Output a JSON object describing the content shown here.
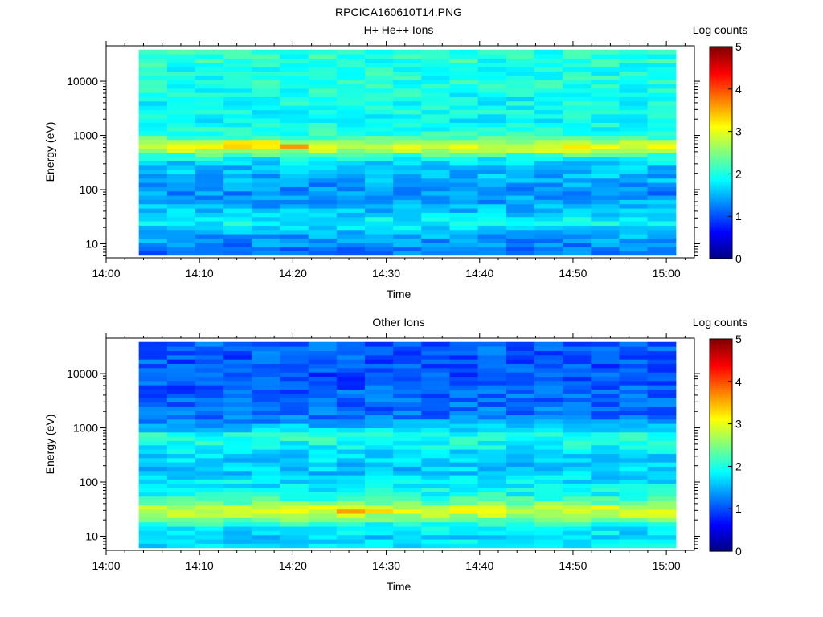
{
  "figure": {
    "title": "RPCICA160610T14.PNG"
  },
  "colormap": {
    "stops": [
      "#00007f",
      "#0000ff",
      "#007fff",
      "#00ffff",
      "#7fff7f",
      "#ffff00",
      "#ff7f00",
      "#ff0000",
      "#7f0000"
    ]
  },
  "chart_data": [
    {
      "type": "heatmap",
      "title": "H+ He++ Ions",
      "xlabel": "Time",
      "ylabel": "Energy (eV)",
      "x_ticks": [
        "14:00",
        "14:10",
        "14:20",
        "14:30",
        "14:40",
        "14:50",
        "15:00"
      ],
      "xlim_minutes": [
        0,
        63
      ],
      "data_x_range_minutes": [
        3.5,
        61
      ],
      "y_scale": "log",
      "ylim": [
        5.5,
        45000
      ],
      "y_ticks": [
        10,
        100,
        1000,
        10000
      ],
      "y_tick_labels": [
        "10",
        "100",
        "1000",
        "10000"
      ],
      "colorbar": {
        "label": "Log counts",
        "range": [
          0,
          5
        ],
        "ticks": [
          "0",
          "1",
          "2",
          "3",
          "4",
          "5"
        ]
      },
      "grid": false,
      "profile": {
        "log_energy": [
          0.8,
          1.0,
          1.2,
          1.4,
          1.6,
          1.8,
          2.0,
          2.2,
          2.4,
          2.6,
          2.7,
          2.8,
          2.9,
          3.0,
          3.2,
          3.5,
          4.0,
          4.6
        ],
        "log_counts": [
          1.2,
          1.3,
          1.5,
          1.9,
          1.6,
          1.4,
          1.3,
          1.5,
          1.6,
          1.9,
          2.6,
          3.0,
          2.6,
          2.1,
          1.9,
          1.9,
          2.0,
          2.05
        ]
      },
      "note_peak": {
        "time_minutes": [
          12,
          22
        ],
        "log_energy": 2.88,
        "boost": 0.5
      }
    },
    {
      "type": "heatmap",
      "title": "Other Ions",
      "xlabel": "Time",
      "ylabel": "Energy (eV)",
      "x_ticks": [
        "14:00",
        "14:10",
        "14:20",
        "14:30",
        "14:40",
        "14:50",
        "15:00"
      ],
      "xlim_minutes": [
        0,
        63
      ],
      "data_x_range_minutes": [
        3.5,
        61
      ],
      "y_scale": "log",
      "ylim": [
        5.5,
        45000
      ],
      "y_ticks": [
        10,
        100,
        1000,
        10000
      ],
      "y_tick_labels": [
        "10",
        "100",
        "1000",
        "10000"
      ],
      "colorbar": {
        "label": "Log counts",
        "range": [
          0,
          5
        ],
        "ticks": [
          "0",
          "1",
          "2",
          "3",
          "4",
          "5"
        ]
      },
      "grid": false,
      "profile": {
        "log_energy": [
          0.8,
          1.0,
          1.2,
          1.3,
          1.4,
          1.5,
          1.6,
          1.8,
          2.0,
          2.2,
          2.5,
          2.7,
          2.85,
          3.0,
          3.2,
          3.6,
          4.0,
          4.6
        ],
        "log_counts": [
          1.8,
          1.7,
          1.9,
          2.4,
          2.8,
          3.0,
          2.5,
          1.9,
          1.8,
          1.6,
          1.7,
          1.9,
          2.1,
          1.6,
          1.2,
          1.1,
          1.0,
          1.1
        ]
      },
      "note_peak": {
        "time_minutes": [
          15,
          30
        ],
        "log_energy": 1.5,
        "boost": 0.4
      }
    }
  ]
}
